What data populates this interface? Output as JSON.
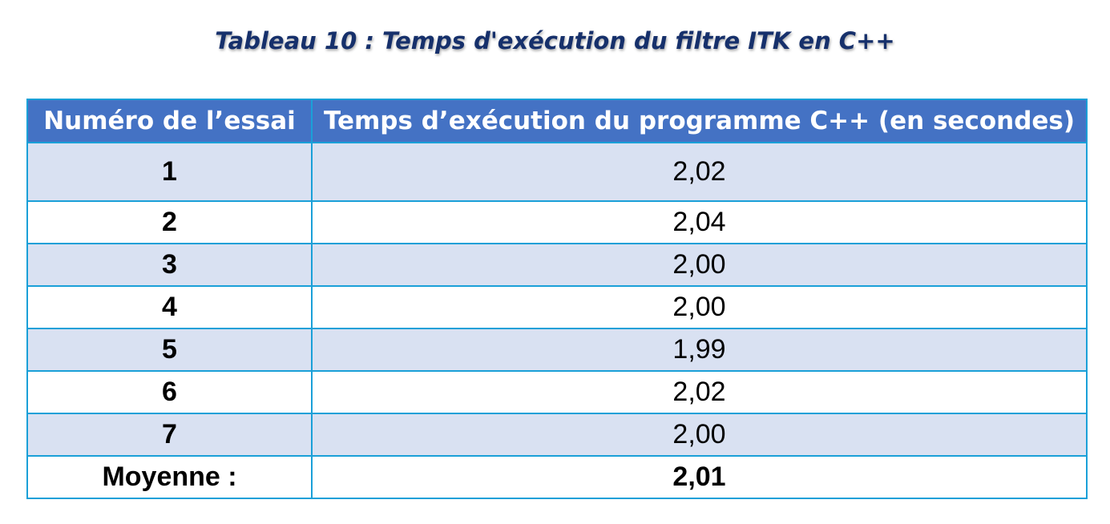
{
  "caption": "Tableau 10 : Temps d'exécution du filtre ITK en C++",
  "table": {
    "headers": [
      "Numéro de l’essai",
      "Temps d’exécution du programme C++ (en secondes)"
    ],
    "rows": [
      {
        "trial": "1",
        "time": "2,02"
      },
      {
        "trial": "2",
        "time": "2,04"
      },
      {
        "trial": "3",
        "time": "2,00"
      },
      {
        "trial": "4",
        "time": "2,00"
      },
      {
        "trial": "5",
        "time": "1,99"
      },
      {
        "trial": "6",
        "time": "2,02"
      },
      {
        "trial": "7",
        "time": "2,00"
      }
    ],
    "average": {
      "label": "Moyenne :",
      "value": "2,01"
    }
  },
  "colors": {
    "header_bg": "#4472c4",
    "band_bg": "#d9e1f2",
    "border": "#1aa0d8",
    "caption": "#16306b"
  }
}
